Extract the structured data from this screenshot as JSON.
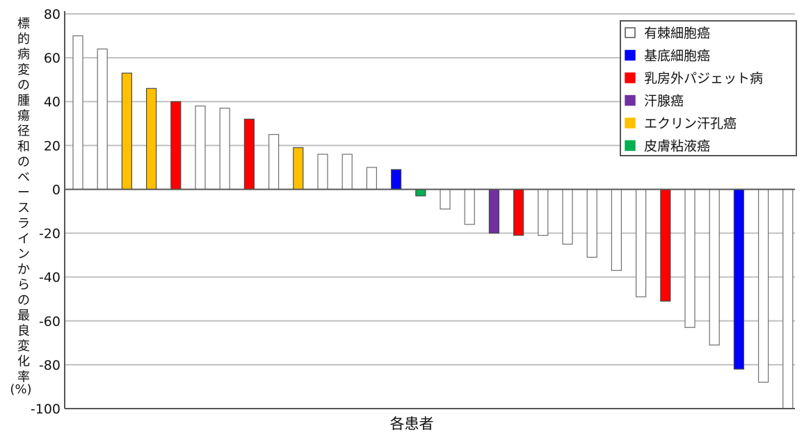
{
  "chart_data": {
    "type": "bar",
    "ylabel": "標的病変の腫瘍径和のベースラインからの最良変化率",
    "yunit": "(%)",
    "xlabel": "各患者",
    "ylim": [
      -100,
      80
    ],
    "yticks": [
      80,
      60,
      40,
      20,
      0,
      -20,
      -40,
      -60,
      -80,
      -100
    ],
    "grid": true,
    "legend_position": "top-right",
    "legend": [
      {
        "label": "有棘細胞癌",
        "color": "#ffffff"
      },
      {
        "label": "基底細胞癌",
        "color": "#0000ff"
      },
      {
        "label": "乳房外パジェット病",
        "color": "#ff0000"
      },
      {
        "label": "汗腺癌",
        "color": "#7030a0"
      },
      {
        "label": "エクリン汗孔癌",
        "color": "#ffc000"
      },
      {
        "label": "皮膚粘液癌",
        "color": "#00b050"
      }
    ],
    "bars": [
      {
        "value": 70,
        "type": 0
      },
      {
        "value": 64,
        "type": 0
      },
      {
        "value": 53,
        "type": 4
      },
      {
        "value": 46,
        "type": 4
      },
      {
        "value": 40,
        "type": 2
      },
      {
        "value": 38,
        "type": 0
      },
      {
        "value": 37,
        "type": 0
      },
      {
        "value": 32,
        "type": 2
      },
      {
        "value": 25,
        "type": 0
      },
      {
        "value": 19,
        "type": 4
      },
      {
        "value": 16,
        "type": 0
      },
      {
        "value": 16,
        "type": 0
      },
      {
        "value": 10,
        "type": 0
      },
      {
        "value": 9,
        "type": 1
      },
      {
        "value": -3,
        "type": 5
      },
      {
        "value": -9,
        "type": 0
      },
      {
        "value": -16,
        "type": 0
      },
      {
        "value": -20,
        "type": 3
      },
      {
        "value": -21,
        "type": 2
      },
      {
        "value": -21,
        "type": 0
      },
      {
        "value": -25,
        "type": 0
      },
      {
        "value": -31,
        "type": 0
      },
      {
        "value": -37,
        "type": 0
      },
      {
        "value": -49,
        "type": 0
      },
      {
        "value": -51,
        "type": 2
      },
      {
        "value": -63,
        "type": 0
      },
      {
        "value": -71,
        "type": 0
      },
      {
        "value": -82,
        "type": 1
      },
      {
        "value": -88,
        "type": 0
      },
      {
        "value": -100,
        "type": 0
      }
    ]
  }
}
